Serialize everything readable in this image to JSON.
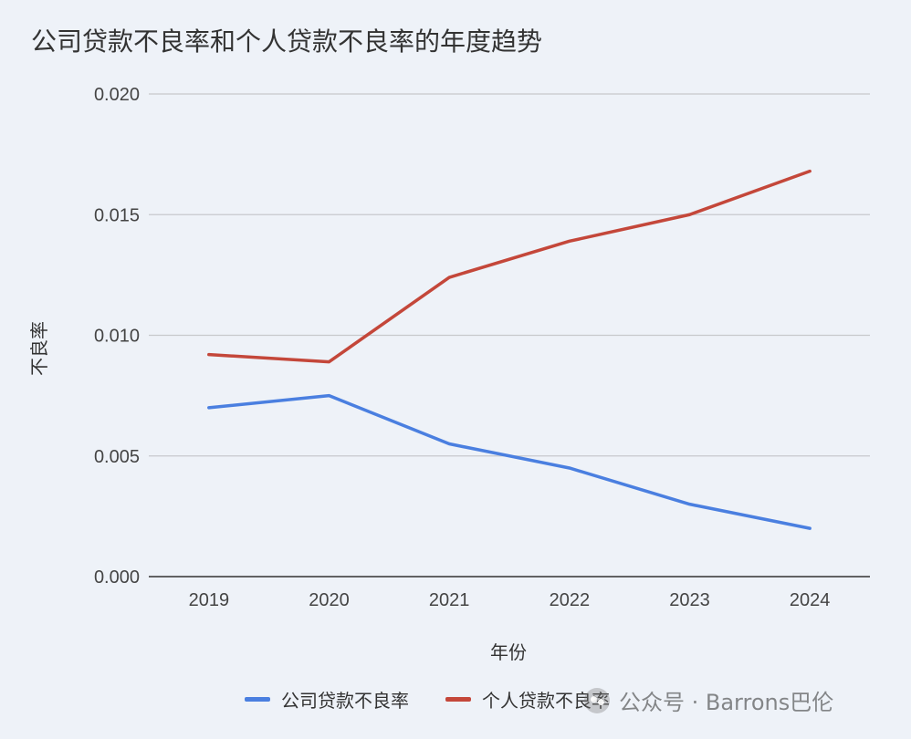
{
  "chart_data": {
    "type": "line",
    "title": "公司贷款不良率和个人贷款不良率的年度趋势",
    "xlabel": "年份",
    "ylabel": "不良率",
    "categories": [
      "2019",
      "2020",
      "2021",
      "2022",
      "2023",
      "2024"
    ],
    "y_ticks": [
      "0.000",
      "0.005",
      "0.010",
      "0.015",
      "0.020"
    ],
    "ylim": [
      0,
      0.02
    ],
    "grid": true,
    "legend_position": "bottom",
    "series": [
      {
        "name": "公司贷款不良率",
        "color": "#4a7fe0",
        "values": [
          0.007,
          0.0075,
          0.0055,
          0.0045,
          0.003,
          0.002
        ]
      },
      {
        "name": "个人贷款不良率",
        "color": "#c4473a",
        "values": [
          0.0092,
          0.0089,
          0.0124,
          0.0139,
          0.015,
          0.0168
        ]
      }
    ]
  },
  "watermark": {
    "text": "公众号 · Barrons巴伦",
    "icon": "wechat-icon"
  }
}
